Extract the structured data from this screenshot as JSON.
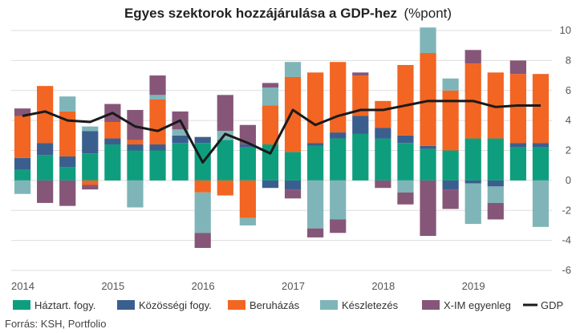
{
  "chart_data": {
    "type": "bar",
    "stacked": true,
    "title": "Egyes szektorok hozzájárulása a GDP-hez",
    "title_unit": "(%pont)",
    "source": "Forrás: KSH, Portfolio",
    "ylim": [
      -6,
      10
    ],
    "y_ticks": [
      -6,
      -4,
      -2,
      0,
      2,
      4,
      6,
      8,
      10
    ],
    "y_axis_position": "right",
    "grid": true,
    "legend_position": "bottom",
    "x_tick_labels": [
      {
        "label": "2014",
        "index": 0
      },
      {
        "label": "2015",
        "index": 4
      },
      {
        "label": "2016",
        "index": 8
      },
      {
        "label": "2017",
        "index": 12
      },
      {
        "label": "2018",
        "index": 16
      },
      {
        "label": "2019",
        "index": 20
      }
    ],
    "categories": [
      "2014 Q1",
      "2014 Q2",
      "2014 Q3",
      "2014 Q4",
      "2015 Q1",
      "2015 Q2",
      "2015 Q3",
      "2015 Q4",
      "2016 Q1",
      "2016 Q2",
      "2016 Q3",
      "2016 Q4",
      "2017 Q1",
      "2017 Q2",
      "2017 Q3",
      "2017 Q4",
      "2018 Q1",
      "2018 Q2",
      "2018 Q3",
      "2018 Q4",
      "2019 Q1",
      "2019 Q2",
      "2019 Q3",
      "2019 Q4"
    ],
    "series": [
      {
        "name": "Háztart. fogy.",
        "color": "#0e9e7e",
        "values": [
          0.7,
          1.7,
          0.9,
          1.8,
          2.4,
          2.0,
          2.0,
          2.5,
          2.5,
          2.7,
          2.2,
          2.4,
          1.9,
          2.3,
          2.8,
          3.1,
          2.8,
          2.5,
          2.1,
          2.0,
          2.8,
          2.8,
          2.2,
          2.2
        ]
      },
      {
        "name": "Közösségi fogy.",
        "color": "#3a5f8f",
        "values": [
          0.8,
          0.8,
          0.7,
          1.5,
          0.4,
          0.4,
          0.4,
          0.5,
          0.4,
          0.0,
          0.2,
          -0.5,
          -0.6,
          0.2,
          0.4,
          1.2,
          0.7,
          0.5,
          0.2,
          -0.6,
          -0.2,
          -0.4,
          0.3,
          0.3
        ]
      },
      {
        "name": "Beruházás",
        "color": "#f26522",
        "values": [
          2.8,
          3.8,
          3.0,
          -0.3,
          1.1,
          0.3,
          3.0,
          0.0,
          -0.8,
          -1.0,
          -2.5,
          2.6,
          5.0,
          4.7,
          4.7,
          2.7,
          1.8,
          4.7,
          6.2,
          4.0,
          5.0,
          4.4,
          4.6,
          4.6
        ]
      },
      {
        "name": "Készletezés",
        "color": "#7fb5b8",
        "values": [
          -0.9,
          0.0,
          1.0,
          0.3,
          0.0,
          -1.8,
          0.3,
          0.4,
          -2.7,
          0.6,
          -0.5,
          1.2,
          1.0,
          -3.2,
          -2.6,
          0.0,
          0.0,
          -0.8,
          1.7,
          0.8,
          -2.7,
          -1.1,
          0.0,
          -3.1
        ]
      },
      {
        "name": "X-IM egyenleg",
        "color": "#865678",
        "values": [
          0.5,
          -1.5,
          -1.7,
          -0.3,
          1.2,
          2.0,
          1.3,
          1.2,
          -1.0,
          2.4,
          1.3,
          0.3,
          -0.6,
          -0.6,
          -0.9,
          0.2,
          -0.5,
          -0.8,
          -3.7,
          -1.3,
          0.9,
          -1.1,
          0.9,
          -0.0
        ]
      },
      {
        "name": "GDP",
        "color": "#1a1a1a",
        "type": "line",
        "values": [
          4.3,
          4.6,
          4.0,
          3.9,
          4.5,
          3.6,
          3.3,
          4.0,
          1.2,
          3.1,
          2.5,
          1.8,
          4.7,
          3.7,
          4.3,
          4.7,
          4.7,
          5.0,
          5.3,
          5.3,
          5.3,
          4.9,
          5.0,
          5.0
        ]
      }
    ]
  }
}
